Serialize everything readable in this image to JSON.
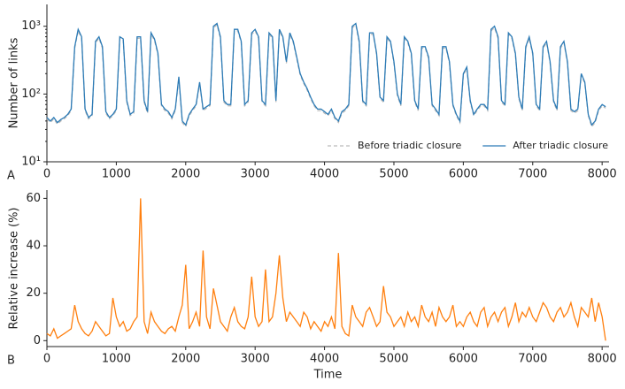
{
  "chart_data": [
    {
      "type": "line",
      "panel_label": "A",
      "ylabel": "Number of links",
      "log_y": true,
      "legend": "lower right",
      "xlim": [
        0,
        8100
      ],
      "xticks": [
        0,
        1000,
        2000,
        3000,
        4000,
        5000,
        6000,
        7000,
        8000
      ],
      "ylim": [
        10,
        2100
      ],
      "yticks": [
        {
          "value": 10,
          "label": "10¹"
        },
        {
          "value": 100,
          "label": "10²"
        },
        {
          "value": 1000,
          "label": "10³"
        }
      ],
      "x": [
        0,
        50,
        100,
        150,
        200,
        250,
        300,
        350,
        400,
        450,
        500,
        550,
        600,
        650,
        700,
        750,
        800,
        850,
        900,
        950,
        1000,
        1050,
        1100,
        1150,
        1200,
        1250,
        1300,
        1350,
        1400,
        1450,
        1500,
        1550,
        1600,
        1650,
        1700,
        1750,
        1800,
        1850,
        1900,
        1950,
        2000,
        2050,
        2100,
        2150,
        2200,
        2250,
        2300,
        2350,
        2400,
        2450,
        2500,
        2550,
        2600,
        2650,
        2700,
        2750,
        2800,
        2850,
        2900,
        2950,
        3000,
        3050,
        3100,
        3150,
        3200,
        3250,
        3300,
        3350,
        3400,
        3450,
        3500,
        3550,
        3600,
        3650,
        3700,
        3750,
        3800,
        3850,
        3900,
        3950,
        4000,
        4050,
        4100,
        4150,
        4200,
        4250,
        4300,
        4350,
        4400,
        4450,
        4500,
        4550,
        4600,
        4650,
        4700,
        4750,
        4800,
        4850,
        4900,
        4950,
        5000,
        5050,
        5100,
        5150,
        5200,
        5250,
        5300,
        5350,
        5400,
        5450,
        5500,
        5550,
        5600,
        5650,
        5700,
        5750,
        5800,
        5850,
        5900,
        5950,
        6000,
        6050,
        6100,
        6150,
        6200,
        6250,
        6300,
        6350,
        6400,
        6450,
        6500,
        6550,
        6600,
        6650,
        6700,
        6750,
        6800,
        6850,
        6900,
        6950,
        7000,
        7050,
        7100,
        7150,
        7200,
        7250,
        7300,
        7350,
        7400,
        7450,
        7500,
        7550,
        7600,
        7650,
        7700,
        7750,
        7800,
        7850,
        7900,
        7950,
        8000,
        8050
      ],
      "series": [
        {
          "name": "Before triadic closure",
          "color": "#bbbbbb",
          "dashed": true,
          "values": [
            43,
            38,
            43,
            36,
            40,
            43,
            48,
            57,
            475,
            855,
            665,
            57,
            43,
            48,
            570,
            665,
            475,
            52,
            43,
            48,
            57,
            665,
            618,
            76,
            48,
            52,
            665,
            665,
            76,
            52,
            760,
            618,
            380,
            67,
            57,
            52,
            43,
            57,
            171,
            38,
            33,
            48,
            57,
            67,
            143,
            57,
            62,
            67,
            950,
            1045,
            665,
            76,
            67,
            67,
            855,
            855,
            570,
            67,
            76,
            760,
            855,
            665,
            76,
            67,
            760,
            665,
            76,
            855,
            665,
            285,
            760,
            570,
            333,
            190,
            143,
            114,
            86,
            67,
            57,
            57,
            52,
            48,
            57,
            43,
            38,
            52,
            57,
            67,
            950,
            1045,
            570,
            76,
            67,
            760,
            760,
            380,
            86,
            76,
            665,
            570,
            285,
            95,
            67,
            665,
            570,
            380,
            76,
            57,
            475,
            475,
            333,
            67,
            57,
            48,
            475,
            475,
            285,
            67,
            48,
            38,
            190,
            238,
            76,
            48,
            57,
            67,
            67,
            57,
            855,
            950,
            665,
            76,
            67,
            760,
            665,
            380,
            86,
            57,
            475,
            665,
            380,
            67,
            57,
            475,
            570,
            285,
            76,
            57,
            475,
            570,
            285,
            57,
            52,
            57,
            190,
            143,
            48,
            33,
            38,
            57,
            67,
            62
          ]
        },
        {
          "name": "After triadic closure",
          "color": "#2c7bb6",
          "dashed": false,
          "values": [
            45,
            40,
            45,
            38,
            42,
            45,
            50,
            60,
            500,
            900,
            700,
            60,
            45,
            50,
            600,
            700,
            500,
            55,
            45,
            50,
            60,
            700,
            650,
            80,
            50,
            55,
            700,
            700,
            80,
            55,
            800,
            650,
            400,
            70,
            60,
            55,
            45,
            60,
            180,
            40,
            35,
            50,
            60,
            70,
            150,
            60,
            65,
            70,
            1000,
            1100,
            700,
            80,
            70,
            70,
            900,
            900,
            600,
            70,
            80,
            800,
            900,
            700,
            80,
            70,
            800,
            700,
            80,
            900,
            700,
            300,
            800,
            600,
            350,
            200,
            150,
            120,
            90,
            70,
            60,
            60,
            55,
            50,
            60,
            45,
            40,
            55,
            60,
            70,
            1000,
            1100,
            600,
            80,
            70,
            800,
            800,
            400,
            90,
            80,
            700,
            600,
            300,
            100,
            70,
            700,
            600,
            400,
            80,
            60,
            500,
            500,
            350,
            70,
            60,
            50,
            500,
            500,
            300,
            70,
            50,
            40,
            200,
            250,
            80,
            50,
            60,
            70,
            70,
            60,
            900,
            1000,
            700,
            80,
            70,
            800,
            700,
            400,
            90,
            60,
            500,
            700,
            400,
            70,
            60,
            500,
            600,
            300,
            80,
            60,
            500,
            600,
            300,
            60,
            55,
            60,
            200,
            150,
            50,
            35,
            40,
            60,
            70,
            65
          ]
        }
      ]
    },
    {
      "type": "line",
      "panel_label": "B",
      "ylabel": "Relative increase (%)",
      "xlabel": "Time",
      "log_y": false,
      "xlim": [
        0,
        8100
      ],
      "xticks": [
        0,
        1000,
        2000,
        3000,
        4000,
        5000,
        6000,
        7000,
        8000
      ],
      "ylim": [
        -2.5,
        63.5
      ],
      "yticks": [
        0,
        20,
        40,
        60
      ],
      "x": [
        0,
        50,
        100,
        150,
        200,
        250,
        300,
        350,
        400,
        450,
        500,
        550,
        600,
        650,
        700,
        750,
        800,
        850,
        900,
        950,
        1000,
        1050,
        1100,
        1150,
        1200,
        1250,
        1300,
        1350,
        1400,
        1450,
        1500,
        1550,
        1600,
        1650,
        1700,
        1750,
        1800,
        1850,
        1900,
        1950,
        2000,
        2050,
        2100,
        2150,
        2200,
        2250,
        2300,
        2350,
        2400,
        2450,
        2500,
        2550,
        2600,
        2650,
        2700,
        2750,
        2800,
        2850,
        2900,
        2950,
        3000,
        3050,
        3100,
        3150,
        3200,
        3250,
        3300,
        3350,
        3400,
        3450,
        3500,
        3550,
        3600,
        3650,
        3700,
        3750,
        3800,
        3850,
        3900,
        3950,
        4000,
        4050,
        4100,
        4150,
        4200,
        4250,
        4300,
        4350,
        4400,
        4450,
        4500,
        4550,
        4600,
        4650,
        4700,
        4750,
        4800,
        4850,
        4900,
        4950,
        5000,
        5050,
        5100,
        5150,
        5200,
        5250,
        5300,
        5350,
        5400,
        5450,
        5500,
        5550,
        5600,
        5650,
        5700,
        5750,
        5800,
        5850,
        5900,
        5950,
        6000,
        6050,
        6100,
        6150,
        6200,
        6250,
        6300,
        6350,
        6400,
        6450,
        6500,
        6550,
        6600,
        6650,
        6700,
        6750,
        6800,
        6850,
        6900,
        6950,
        7000,
        7050,
        7100,
        7150,
        7200,
        7250,
        7300,
        7350,
        7400,
        7450,
        7500,
        7550,
        7600,
        7650,
        7700,
        7750,
        7800,
        7850,
        7900,
        7950,
        8000,
        8050
      ],
      "series": [
        {
          "color": "#ff7f0e",
          "dashed": false,
          "values": [
            3,
            2,
            5,
            1,
            2,
            3,
            4,
            5,
            15,
            8,
            5,
            3,
            2,
            4,
            8,
            6,
            4,
            2,
            3,
            18,
            10,
            6,
            8,
            4,
            5,
            8,
            10,
            60,
            8,
            3,
            12,
            8,
            6,
            4,
            3,
            5,
            6,
            4,
            10,
            15,
            32,
            5,
            8,
            12,
            6,
            38,
            10,
            5,
            22,
            15,
            8,
            6,
            4,
            10,
            14,
            8,
            6,
            5,
            10,
            27,
            10,
            6,
            8,
            30,
            8,
            10,
            20,
            36,
            18,
            8,
            12,
            10,
            8,
            6,
            12,
            10,
            5,
            8,
            6,
            4,
            8,
            6,
            10,
            5,
            37,
            6,
            3,
            2,
            15,
            10,
            8,
            6,
            12,
            14,
            10,
            6,
            8,
            23,
            12,
            10,
            6,
            8,
            10,
            6,
            12,
            8,
            10,
            6,
            15,
            10,
            8,
            12,
            6,
            14,
            10,
            8,
            10,
            15,
            6,
            8,
            6,
            10,
            12,
            8,
            6,
            12,
            14,
            6,
            10,
            12,
            8,
            12,
            14,
            6,
            10,
            16,
            8,
            12,
            10,
            14,
            10,
            8,
            12,
            16,
            14,
            10,
            8,
            12,
            14,
            10,
            12,
            16,
            10,
            6,
            14,
            12,
            10,
            18,
            8,
            16,
            10,
            0
          ]
        }
      ]
    }
  ]
}
